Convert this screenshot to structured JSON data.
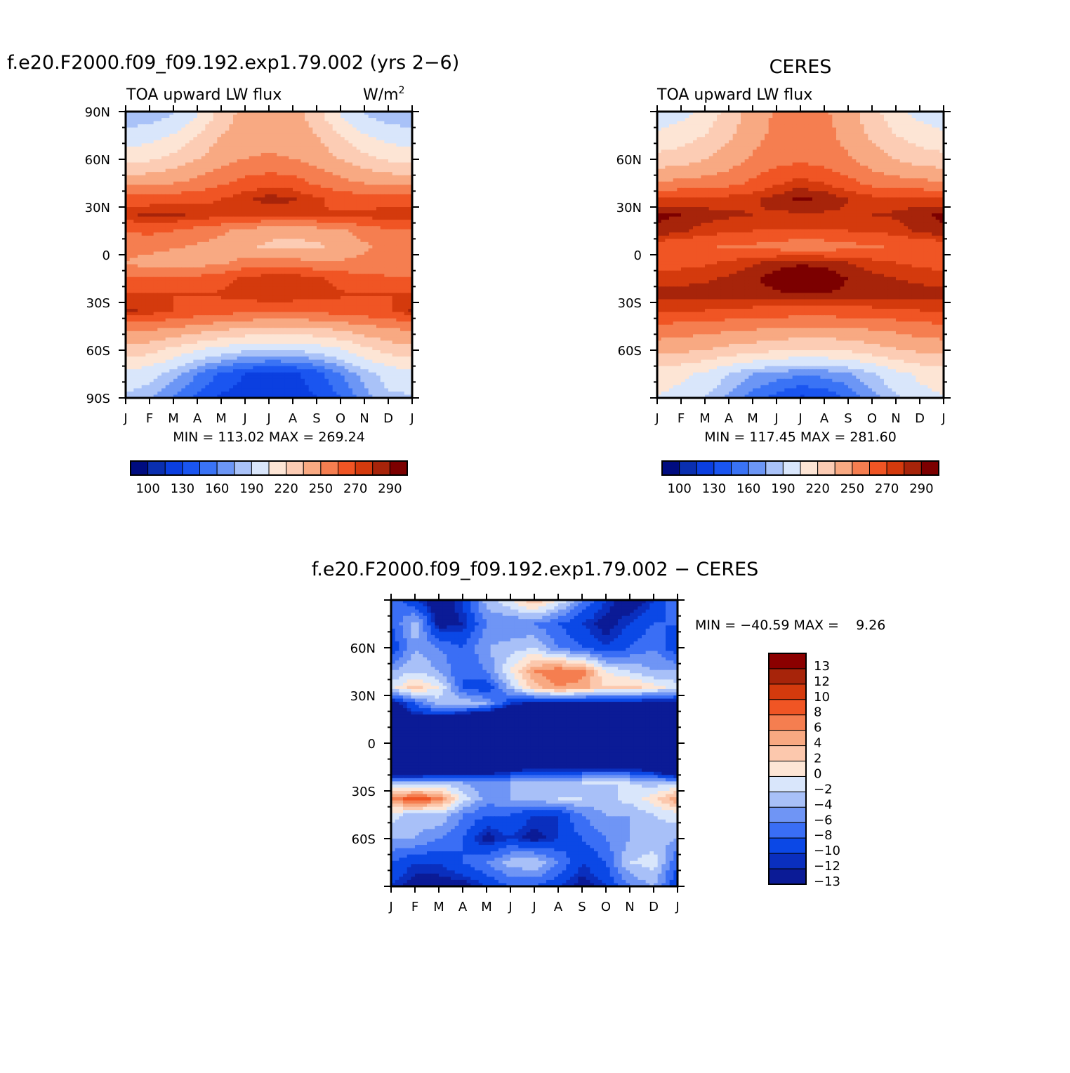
{
  "colors": {
    "abs_palette": [
      "#000c80",
      "#0a2fb0",
      "#0b3fe0",
      "#1a55f0",
      "#3a73f5",
      "#6c96f5",
      "#a9c2f8",
      "#d9e6fb",
      "#fde5d5",
      "#fcccb4",
      "#f8a982",
      "#f57e50",
      "#f05524",
      "#d43a0d",
      "#a7240a",
      "#7c0000"
    ],
    "diff_palette": [
      "#0b1b96",
      "#0a2fbe",
      "#0b48e6",
      "#3a6ef5",
      "#6f95f5",
      "#a8c0f8",
      "#d9e6fb",
      "#fde5d5",
      "#fcc8ad",
      "#f8a982",
      "#f57e50",
      "#f05524",
      "#d43a0d",
      "#a7240a",
      "#8b0000"
    ]
  },
  "panel_top_left": {
    "case_title": "f.e20.F2000.f09_f09.192.exp1.79.002 (yrs 2−6)",
    "left_label": "TOA upward LW flux",
    "right_label": "W/m",
    "units_sup": "2",
    "stats": "MIN = 113.02 MAX = 269.24",
    "colorbar_labels": [
      "100",
      "130",
      "160",
      "190",
      "220",
      "250",
      "270",
      "290"
    ]
  },
  "panel_top_right": {
    "title": "CERES",
    "left_label": "TOA upward LW flux",
    "stats": "MIN = 117.45 MAX = 281.60",
    "colorbar_labels": [
      "100",
      "130",
      "160",
      "190",
      "220",
      "250",
      "270",
      "290"
    ]
  },
  "panel_diff": {
    "title": "f.e20.F2000.f09_f09.192.exp1.79.002 − CERES",
    "stats": "MIN = −40.59 MAX =    9.26",
    "colorbar_labels": [
      "13",
      "12",
      "10",
      "8",
      "6",
      "4",
      "2",
      "0",
      "−2",
      "−4",
      "−6",
      "−8",
      "−10",
      "−12",
      "−13"
    ]
  },
  "chart_data": [
    {
      "type": "heatmap",
      "title": "f.e20.F2000.f09_f09.192.exp1.79.002 (yrs 2−6)",
      "subtitle_left": "TOA upward LW flux",
      "subtitle_right": "W/m²",
      "x_tick_labels": [
        "J",
        "F",
        "M",
        "A",
        "M",
        "J",
        "J",
        "A",
        "S",
        "O",
        "N",
        "D",
        "J"
      ],
      "y_tick_labels": [
        "90N",
        "60N",
        "30N",
        "0",
        "30S",
        "60S",
        "90S"
      ],
      "ylim": [
        -90,
        90
      ],
      "min": 113.02,
      "max": 269.24,
      "months": [
        1,
        2,
        3,
        4,
        5,
        6,
        7,
        8,
        9,
        10,
        11,
        12,
        13
      ],
      "lats": [
        90,
        75,
        60,
        45,
        35,
        25,
        15,
        5,
        -5,
        -15,
        -25,
        -35,
        -45,
        -60,
        -75,
        -90
      ],
      "values": [
        [
          150,
          150,
          158,
          172,
          195,
          210,
          212,
          212,
          195,
          172,
          158,
          150,
          150
        ],
        [
          165,
          168,
          176,
          190,
          205,
          214,
          216,
          214,
          205,
          190,
          176,
          168,
          165
        ],
        [
          185,
          188,
          195,
          205,
          215,
          220,
          222,
          220,
          215,
          205,
          195,
          188,
          185
        ],
        [
          215,
          217,
          220,
          225,
          232,
          240,
          245,
          242,
          232,
          225,
          220,
          217,
          215
        ],
        [
          240,
          242,
          243,
          245,
          250,
          258,
          265,
          262,
          252,
          245,
          242,
          240,
          240
        ],
        [
          258,
          262,
          262,
          258,
          255,
          252,
          250,
          250,
          250,
          252,
          255,
          257,
          258
        ],
        [
          235,
          238,
          235,
          228,
          222,
          215,
          210,
          210,
          212,
          218,
          225,
          232,
          235
        ],
        [
          228,
          226,
          222,
          218,
          215,
          208,
          202,
          200,
          202,
          210,
          218,
          225,
          228
        ],
        [
          220,
          212,
          208,
          212,
          218,
          225,
          228,
          226,
          222,
          222,
          224,
          224,
          220
        ],
        [
          235,
          236,
          238,
          240,
          245,
          252,
          258,
          258,
          252,
          245,
          240,
          237,
          235
        ],
        [
          250,
          250,
          250,
          250,
          252,
          255,
          260,
          258,
          255,
          252,
          250,
          250,
          250
        ],
        [
          262,
          258,
          250,
          245,
          242,
          240,
          238,
          238,
          240,
          242,
          245,
          248,
          262
        ],
        [
          225,
          225,
          222,
          218,
          212,
          208,
          205,
          205,
          208,
          212,
          218,
          222,
          225
        ],
        [
          200,
          195,
          185,
          175,
          168,
          162,
          160,
          160,
          165,
          172,
          185,
          195,
          200
        ],
        [
          170,
          165,
          155,
          140,
          128,
          120,
          116,
          118,
          125,
          140,
          155,
          165,
          170
        ],
        [
          158,
          152,
          140,
          128,
          118,
          114,
          113,
          115,
          120,
          130,
          145,
          158,
          158
        ]
      ]
    },
    {
      "type": "heatmap",
      "title": "CERES",
      "subtitle_left": "TOA upward LW flux",
      "x_tick_labels": [
        "J",
        "F",
        "M",
        "A",
        "M",
        "J",
        "J",
        "A",
        "S",
        "O",
        "N",
        "D",
        "J"
      ],
      "y_tick_labels": [
        "60N",
        "30N",
        "0",
        "30S",
        "60S"
      ],
      "ylim": [
        -90,
        90
      ],
      "min": 117.45,
      "max": 281.6,
      "months": [
        1,
        2,
        3,
        4,
        5,
        6,
        7,
        8,
        9,
        10,
        11,
        12,
        13
      ],
      "lats": [
        90,
        75,
        60,
        45,
        35,
        25,
        15,
        5,
        -5,
        -15,
        -25,
        -35,
        -45,
        -60,
        -75,
        -90
      ],
      "values": [
        [
          165,
          170,
          180,
          195,
          212,
          222,
          225,
          222,
          212,
          195,
          180,
          170,
          165
        ],
        [
          178,
          182,
          190,
          202,
          215,
          224,
          228,
          225,
          215,
          202,
          190,
          182,
          178
        ],
        [
          195,
          198,
          205,
          212,
          222,
          228,
          232,
          228,
          222,
          212,
          205,
          198,
          195
        ],
        [
          222,
          224,
          226,
          230,
          238,
          248,
          255,
          250,
          240,
          230,
          226,
          224,
          222
        ],
        [
          250,
          252,
          253,
          255,
          258,
          265,
          272,
          268,
          260,
          255,
          253,
          252,
          250
        ],
        [
          272,
          270,
          265,
          262,
          260,
          258,
          258,
          258,
          258,
          260,
          262,
          268,
          272
        ],
        [
          268,
          262,
          255,
          252,
          250,
          248,
          248,
          248,
          250,
          250,
          255,
          262,
          268
        ],
        [
          240,
          238,
          236,
          234,
          232,
          228,
          225,
          226,
          230,
          234,
          236,
          238,
          240
        ],
        [
          245,
          246,
          248,
          252,
          258,
          265,
          268,
          266,
          260,
          254,
          250,
          247,
          245
        ],
        [
          255,
          256,
          258,
          262,
          268,
          275,
          281,
          278,
          270,
          264,
          260,
          257,
          255
        ],
        [
          265,
          265,
          265,
          265,
          266,
          268,
          270,
          269,
          267,
          266,
          265,
          265,
          265
        ],
        [
          252,
          252,
          250,
          248,
          246,
          245,
          244,
          244,
          245,
          246,
          248,
          250,
          252
        ],
        [
          232,
          230,
          228,
          226,
          224,
          222,
          220,
          220,
          222,
          224,
          226,
          230,
          232
        ],
        [
          210,
          208,
          205,
          200,
          196,
          192,
          190,
          190,
          192,
          198,
          204,
          208,
          210
        ],
        [
          180,
          178,
          172,
          160,
          150,
          145,
          142,
          143,
          148,
          158,
          170,
          178,
          180
        ],
        [
          175,
          170,
          160,
          148,
          136,
          126,
          118,
          122,
          132,
          145,
          158,
          170,
          175
        ]
      ]
    },
    {
      "type": "heatmap",
      "title": "f.e20.F2000.f09_f09.192.exp1.79.002 − CERES",
      "x_tick_labels": [
        "J",
        "F",
        "M",
        "A",
        "M",
        "J",
        "J",
        "A",
        "S",
        "O",
        "N",
        "D",
        "J"
      ],
      "y_tick_labels": [
        "60N",
        "30N",
        "0",
        "30S",
        "60S"
      ],
      "ylim": [
        -90,
        90
      ],
      "min": -40.59,
      "max": 9.26,
      "months": [
        1,
        2,
        3,
        4,
        5,
        6,
        7,
        8,
        9,
        10,
        11,
        12,
        13
      ],
      "lats": [
        90,
        75,
        60,
        45,
        35,
        25,
        15,
        5,
        -5,
        -15,
        -25,
        -35,
        -45,
        -60,
        -75,
        -90
      ],
      "values": [
        [
          -8,
          -12,
          -15,
          -12,
          -5,
          -2,
          2,
          -2,
          -8,
          -12,
          -15,
          -12,
          -8
        ],
        [
          -10,
          -5,
          -14,
          -13,
          -8,
          -8,
          -8,
          -10,
          -12,
          -14,
          -12,
          -10,
          -10
        ],
        [
          -12,
          -6,
          -8,
          -10,
          -6,
          -5,
          -4,
          -8,
          -10,
          -12,
          -10,
          -8,
          -12
        ],
        [
          -6,
          -4,
          -6,
          -10,
          -8,
          -2,
          4,
          6,
          5,
          -2,
          -4,
          -6,
          -6
        ],
        [
          -3,
          1,
          -2,
          -10,
          -12,
          -5,
          1,
          4,
          3,
          0,
          1,
          -1,
          -3
        ],
        [
          -15,
          -10,
          -5,
          -4,
          -6,
          -12,
          -14,
          -15,
          -15,
          -15,
          -15,
          -15,
          -15
        ],
        [
          -18,
          -14,
          -15,
          -18,
          -20,
          -22,
          -22,
          -24,
          -24,
          -22,
          -20,
          -18,
          -18
        ],
        [
          -20,
          -20,
          -20,
          -22,
          -20,
          -18,
          -18,
          -20,
          -22,
          -24,
          -22,
          -20,
          -20
        ],
        [
          -22,
          -20,
          -18,
          -20,
          -22,
          -22,
          -22,
          -22,
          -20,
          -18,
          -16,
          -18,
          -22
        ],
        [
          -24,
          -22,
          -20,
          -20,
          -18,
          -16,
          -14,
          -15,
          -14,
          -14,
          -14,
          -16,
          -24
        ],
        [
          -5,
          -6,
          -5,
          -6,
          -7,
          -6,
          -4,
          -5,
          -4,
          -4,
          -4,
          -5,
          -5
        ],
        [
          4,
          8,
          5,
          -3,
          -7,
          -6,
          -5,
          -4,
          -4,
          -5,
          -3,
          -1,
          4
        ],
        [
          -3,
          -5,
          -4,
          -8,
          -10,
          -10,
          -12,
          -12,
          -8,
          -6,
          -6,
          -4,
          -3
        ],
        [
          -6,
          -6,
          -8,
          -10,
          -14,
          -12,
          -14,
          -12,
          -10,
          -8,
          -6,
          -5,
          -6
        ],
        [
          -10,
          -12,
          -12,
          -10,
          -8,
          -5,
          -4,
          -8,
          -12,
          -10,
          -4,
          -3,
          -10
        ],
        [
          -12,
          -14,
          -14,
          -14,
          -12,
          -10,
          -10,
          -12,
          -14,
          -12,
          -8,
          -6,
          -12
        ]
      ]
    }
  ]
}
